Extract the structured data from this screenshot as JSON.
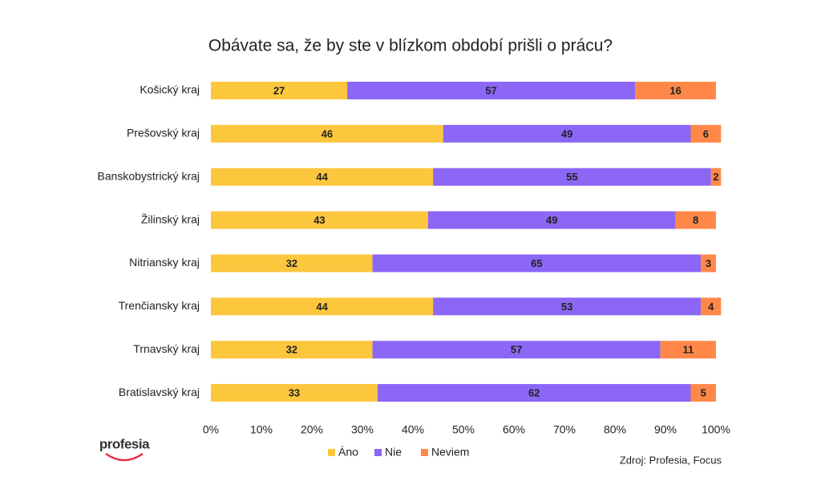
{
  "chart_data": {
    "type": "stacked-barh",
    "title": "Obávate sa, že by ste v blízkom období prišli o prácu?",
    "categories": [
      "Košický kraj",
      "Prešovský kraj",
      "Banskobystrický kraj",
      "Žilinský kraj",
      "Nitriansky kraj",
      "Trenčiansky kraj",
      "Trnavský kraj",
      "Bratislavský kraj"
    ],
    "series": [
      {
        "name": "Áno",
        "color": "#fcc73d",
        "values": [
          27,
          46,
          44,
          43,
          32,
          44,
          32,
          33
        ]
      },
      {
        "name": "Nie",
        "color": "#8c66f5",
        "values": [
          57,
          49,
          55,
          49,
          65,
          53,
          57,
          62
        ]
      },
      {
        "name": "Neviem",
        "color": "#ff8849",
        "values": [
          16,
          6,
          2,
          8,
          3,
          4,
          11,
          5
        ]
      }
    ],
    "xlim": [
      0,
      100
    ],
    "xticks": [
      {
        "value": 0,
        "label": "0%"
      },
      {
        "value": 10,
        "label": "10%"
      },
      {
        "value": 20,
        "label": "20%"
      },
      {
        "value": 30,
        "label": "30%"
      },
      {
        "value": 40,
        "label": "40%"
      },
      {
        "value": 50,
        "label": "50%"
      },
      {
        "value": 60,
        "label": "60%"
      },
      {
        "value": 70,
        "label": "70%"
      },
      {
        "value": 80,
        "label": "80%"
      },
      {
        "value": 90,
        "label": "90%"
      },
      {
        "value": 100,
        "label": "100%"
      }
    ],
    "grid": false,
    "legend": "bottom",
    "source": "Zdroj: Profesia, Focus",
    "logo": "profesia"
  }
}
